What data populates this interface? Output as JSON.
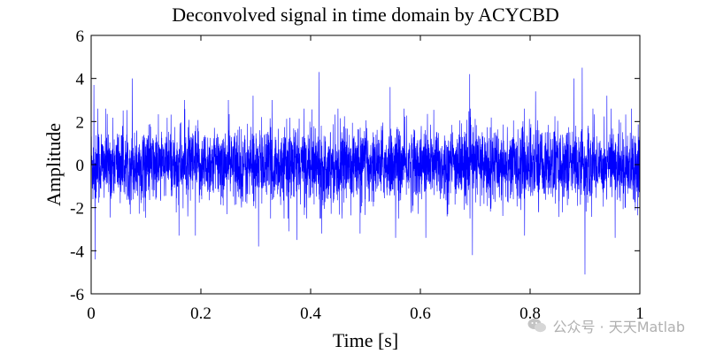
{
  "chart_data": {
    "type": "line",
    "title": "Deconvolved signal in time domain by ACYCBD",
    "xlabel": "Time [s]",
    "ylabel": "Amplitude",
    "xlim": [
      0,
      1
    ],
    "ylim": [
      -6,
      6
    ],
    "x_ticks": [
      0,
      0.2,
      0.4,
      0.6,
      0.8,
      1
    ],
    "x_tick_labels": [
      "0",
      "0.2",
      "0.4",
      "0.6",
      "0.8",
      "1"
    ],
    "y_ticks": [
      -6,
      -4,
      -2,
      0,
      2,
      4,
      6
    ],
    "y_tick_labels": [
      "-6",
      "-4",
      "-2",
      "0",
      "2",
      "4",
      "6"
    ],
    "grid": false,
    "legend": "none",
    "series": [
      {
        "color": "#0000ff",
        "sample_count": 4000,
        "typical_band": [
          -2.5,
          2.6
        ],
        "peaks": [
          {
            "x": 0.005,
            "y": 3.7
          },
          {
            "x": 0.007,
            "y": -4.4
          },
          {
            "x": 0.012,
            "y": 2.6
          },
          {
            "x": 0.075,
            "y": 4.0
          },
          {
            "x": 0.16,
            "y": -3.3
          },
          {
            "x": 0.17,
            "y": 3.0
          },
          {
            "x": 0.19,
            "y": -3.3
          },
          {
            "x": 0.25,
            "y": 3.0
          },
          {
            "x": 0.295,
            "y": 3.2
          },
          {
            "x": 0.305,
            "y": -3.8
          },
          {
            "x": 0.33,
            "y": 3.0
          },
          {
            "x": 0.36,
            "y": -3.1
          },
          {
            "x": 0.375,
            "y": -3.5
          },
          {
            "x": 0.415,
            "y": 4.3
          },
          {
            "x": 0.42,
            "y": -3.2
          },
          {
            "x": 0.49,
            "y": -3.2
          },
          {
            "x": 0.545,
            "y": 3.6
          },
          {
            "x": 0.555,
            "y": -3.4
          },
          {
            "x": 0.61,
            "y": -3.4
          },
          {
            "x": 0.69,
            "y": 4.2
          },
          {
            "x": 0.695,
            "y": -4.2
          },
          {
            "x": 0.79,
            "y": -3.3
          },
          {
            "x": 0.81,
            "y": 3.4
          },
          {
            "x": 0.88,
            "y": 4.0
          },
          {
            "x": 0.895,
            "y": 4.5
          },
          {
            "x": 0.9,
            "y": -5.1
          },
          {
            "x": 0.94,
            "y": 3.2
          },
          {
            "x": 0.955,
            "y": -3.4
          },
          {
            "x": 0.985,
            "y": 2.6
          }
        ]
      }
    ]
  },
  "watermark": {
    "icon": "wechat-icon",
    "text": "公众号 · 天天Matlab"
  }
}
